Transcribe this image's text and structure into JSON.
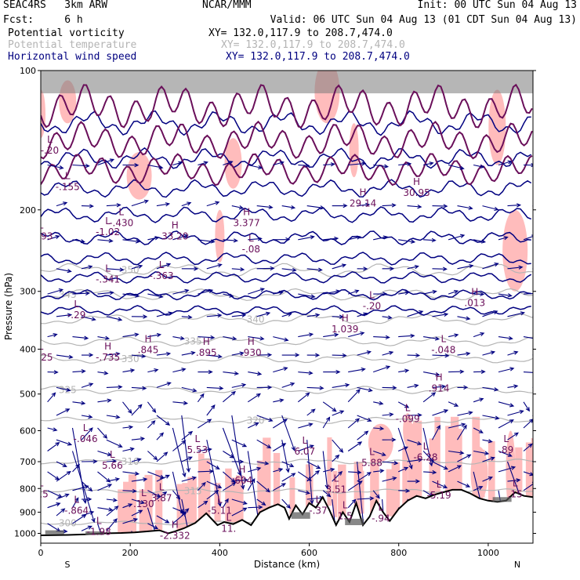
{
  "header": {
    "model": "SEAC4RS   3km ARW",
    "org": "NCAR/MMM",
    "init": "Init: 00 UTC Sun 04 Aug 13",
    "fcst": "Fcst:     6 h",
    "valid": "Valid: 06 UTC Sun 04 Aug 13 (01 CDT Sun 04 Aug 13)",
    "fields": [
      {
        "name": "Potential vorticity",
        "xy": "XY= 132.0,117.9 to 208.7,474.0",
        "color": "#000000"
      },
      {
        "name": "Potential temperature",
        "xy": "XY= 132.0,117.9 to 208.7,474.0",
        "color": "#b4b4b4"
      },
      {
        "name": "Horizontal wind speed",
        "xy": "XY= 132.0,117.9 to 208.7,474.0",
        "color": "#000080"
      }
    ]
  },
  "colors": {
    "pv_shade": "#ffbcbc",
    "pv_contour": "#6a0f5a",
    "theta": "#b4b4b4",
    "wind": "#000080",
    "terrain": "#000000",
    "dark_fill": "#555555"
  },
  "chart_data": {
    "type": "cross-section",
    "xlabel": "Distance (km)",
    "ylabel": "Pressure (hPa)",
    "x_ticks": [
      0,
      200,
      400,
      600,
      800,
      1000
    ],
    "y_ticks": [
      100,
      200,
      300,
      400,
      500,
      600,
      700,
      800,
      900,
      1000
    ],
    "xlim": [
      0,
      1100
    ],
    "ylim": [
      1050,
      100
    ],
    "y_scale": "log",
    "end_labels": {
      "left": "S",
      "right": "N"
    },
    "terrain": {
      "x": [
        0,
        60,
        100,
        140,
        180,
        210,
        240,
        265,
        285,
        300,
        320,
        345,
        370,
        395,
        410,
        430,
        450,
        470,
        490,
        510,
        530,
        545,
        555,
        570,
        585,
        600,
        615,
        630,
        645,
        660,
        675,
        690,
        705,
        720,
        735,
        750,
        765,
        780,
        800,
        820,
        840,
        860,
        880,
        900,
        920,
        940,
        960,
        980,
        1000,
        1020,
        1040,
        1060,
        1080,
        1100
      ],
      "p": [
        1010,
        1008,
        1005,
        1000,
        998,
        995,
        990,
        985,
        1000,
        990,
        975,
        950,
        905,
        960,
        945,
        955,
        935,
        960,
        900,
        880,
        865,
        880,
        930,
        870,
        910,
        860,
        880,
        835,
        890,
        960,
        900,
        945,
        860,
        960,
        920,
        850,
        900,
        940,
        885,
        850,
        830,
        840,
        825,
        815,
        805,
        805,
        820,
        840,
        850,
        855,
        850,
        815,
        830,
        835
      ]
    },
    "theta_contours": [
      {
        "label": "300",
        "p": 950
      },
      {
        "label": "310",
        "p": 700
      },
      {
        "label": "315",
        "p": 810
      },
      {
        "label": "320",
        "p": 570
      },
      {
        "label": "325",
        "p": 490
      },
      {
        "label": "330",
        "p": 420
      },
      {
        "label": "335",
        "p": 385
      },
      {
        "label": "340",
        "p": 345
      },
      {
        "label": "345",
        "p": 305
      },
      {
        "label": "350",
        "p": 270
      }
    ],
    "pv_labels": [
      {
        "type": "L",
        "value": "-.093",
        "x": 0,
        "p": 230
      },
      {
        "type": "L",
        "value": "-.20",
        "x": 20,
        "p": 150
      },
      {
        "type": "L",
        "value": "-.155",
        "x": 60,
        "p": 180
      },
      {
        "type": "L",
        "value": "-1.02",
        "x": 150,
        "p": 225
      },
      {
        "type": "L",
        "value": "-.430",
        "x": 180,
        "p": 215
      },
      {
        "type": "L",
        "value": "-.341",
        "x": 150,
        "p": 285
      },
      {
        "type": "L",
        "value": "-.363",
        "x": 270,
        "p": 280
      },
      {
        "type": "H",
        "value": "33.20",
        "x": 300,
        "p": 230
      },
      {
        "type": "H",
        "value": "3.377",
        "x": 460,
        "p": 215
      },
      {
        "type": "L",
        "value": "-.08",
        "x": 470,
        "p": 245
      },
      {
        "type": "H",
        "value": "29.14",
        "x": 720,
        "p": 195
      },
      {
        "type": "H",
        "value": "30.95",
        "x": 840,
        "p": 185
      },
      {
        "type": "L",
        "value": "-.29",
        "x": 80,
        "p": 340
      },
      {
        "type": "L",
        "value": "-.20",
        "x": 740,
        "p": 325
      },
      {
        "type": "H",
        "value": "1.039",
        "x": 680,
        "p": 365
      },
      {
        "type": "H",
        "value": ".013",
        "x": 970,
        "p": 320
      },
      {
        "type": "L",
        "value": "-.325",
        "x": 0,
        "p": 420
      },
      {
        "type": "H",
        "value": "-.735",
        "x": 150,
        "p": 420
      },
      {
        "type": "H",
        "value": ".845",
        "x": 240,
        "p": 405
      },
      {
        "type": "H",
        "value": ".895",
        "x": 370,
        "p": 410
      },
      {
        "type": "H",
        "value": ".930",
        "x": 470,
        "p": 410
      },
      {
        "type": "L",
        "value": "-.048",
        "x": 900,
        "p": 405
      },
      {
        "type": "H",
        "value": ".914",
        "x": 890,
        "p": 490
      },
      {
        "type": "L",
        "value": "-.099",
        "x": 820,
        "p": 570
      },
      {
        "type": "L",
        "value": "-.046",
        "x": 100,
        "p": 630
      },
      {
        "type": "L",
        "value": "5.53",
        "x": 350,
        "p": 665
      },
      {
        "type": "L",
        "value": "6.07",
        "x": 590,
        "p": 670
      },
      {
        "type": "L",
        "value": "-6.28",
        "x": 860,
        "p": 690
      },
      {
        "type": "L",
        "value": "5.66",
        "x": 160,
        "p": 720
      },
      {
        "type": "L",
        "value": "5.88",
        "x": 740,
        "p": 710
      },
      {
        "type": "L",
        "value": ".89",
        "x": 1040,
        "p": 665
      },
      {
        "type": "H",
        "value": ".604",
        "x": 450,
        "p": 775
      },
      {
        "type": "L",
        "value": "3.51",
        "x": 660,
        "p": 810
      },
      {
        "type": "L",
        "value": "-15",
        "x": 0,
        "p": 830
      },
      {
        "type": "L",
        "value": "3.87",
        "x": 270,
        "p": 845
      },
      {
        "type": "L",
        "value": ".130",
        "x": 230,
        "p": 870
      },
      {
        "type": "L",
        "value": "-5.19",
        "x": 890,
        "p": 835
      },
      {
        "type": "L",
        "value": ".15",
        "x": 1060,
        "p": 830
      },
      {
        "type": "L",
        "value": "-.864",
        "x": 80,
        "p": 900
      },
      {
        "type": "L",
        "value": "-5.11",
        "x": 400,
        "p": 900
      },
      {
        "type": "L",
        "value": "-.37",
        "x": 620,
        "p": 900
      },
      {
        "type": "L",
        "value": "1.5",
        "x": 680,
        "p": 925
      },
      {
        "type": "L",
        "value": "-.94",
        "x": 760,
        "p": 935
      },
      {
        "type": "L",
        "value": "-1.98",
        "x": 130,
        "p": 1000
      },
      {
        "type": "H",
        "value": "-2.332",
        "x": 300,
        "p": 1020
      },
      {
        "type": "L",
        "value": "11.",
        "x": 420,
        "p": 985
      }
    ]
  }
}
